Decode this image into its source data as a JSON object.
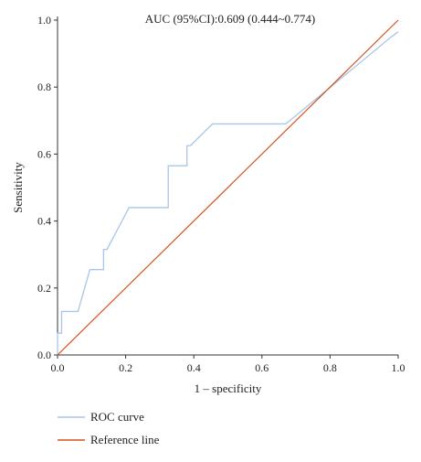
{
  "chart_data": {
    "type": "line",
    "title": "",
    "annotation": "AUC (95%CI):0.609 (0.444~0.774)",
    "xlabel": "1 – specificity",
    "ylabel": "Sensitivity",
    "xlim": [
      0,
      1
    ],
    "ylim": [
      0,
      1
    ],
    "x_ticks": [
      "0.0",
      "0.2",
      "0.4",
      "0.6",
      "0.8",
      "1.0"
    ],
    "y_ticks": [
      "0.0",
      "0.2",
      "0.4",
      "0.6",
      "0.8",
      "1.0"
    ],
    "grid": false,
    "legend_position": "bottom-left",
    "series": [
      {
        "name": "ROC curve",
        "color": "#a9c6e8",
        "x": [
          0,
          0,
          0.012,
          0.012,
          0.06,
          0.095,
          0.135,
          0.135,
          0.145,
          0.21,
          0.325,
          0.325,
          0.38,
          0.38,
          0.39,
          0.455,
          0.67,
          0.98,
          1.0
        ],
        "y": [
          0,
          0.065,
          0.065,
          0.13,
          0.13,
          0.255,
          0.255,
          0.315,
          0.315,
          0.44,
          0.44,
          0.565,
          0.565,
          0.625,
          0.625,
          0.69,
          0.69,
          0.95,
          0.965
        ]
      },
      {
        "name": "Reference line",
        "color": "#d4521e",
        "x": [
          0,
          1
        ],
        "y": [
          0,
          1
        ]
      }
    ]
  }
}
